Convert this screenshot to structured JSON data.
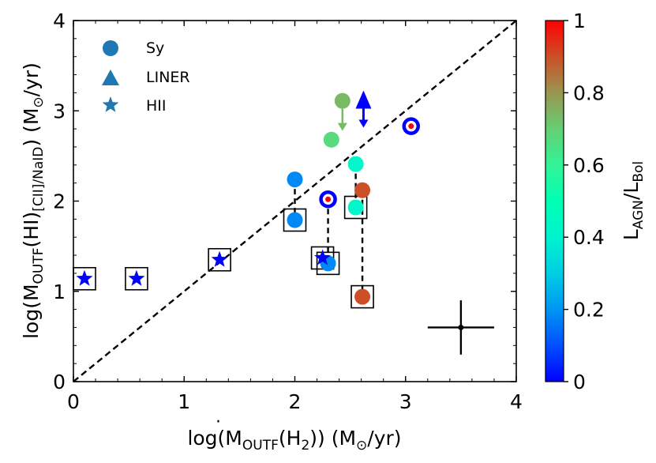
{
  "chart_data": {
    "type": "scatter",
    "xlim": [
      0,
      4
    ],
    "ylim": [
      0,
      4
    ],
    "xticks": [
      "0",
      "1",
      "2",
      "3",
      "4"
    ],
    "yticks": [
      "0",
      "1",
      "2",
      "3",
      "4"
    ],
    "x_axis_label": {
      "main": "log(M",
      "sub": "OUTF",
      "tail": "(H",
      "sub2": "2",
      "tail2": ")) (M",
      "sun": "⊙",
      "unit": "/yr)"
    },
    "y_axis_label": {
      "main": "log(M",
      "sub": "OUTF",
      "mid": "(HI)",
      "sub2": "[CII]/NaID",
      "tail": ") (M",
      "sun": "⊙",
      "unit": "/yr)"
    },
    "colorbar": {
      "range": [
        0,
        1
      ],
      "ticks": [
        "0",
        "0.2",
        "0.4",
        "0.6",
        "0.8",
        "1"
      ],
      "label_main": "L",
      "label_sub1": "AGN",
      "label_mid": "/L",
      "label_sub2": "Bol"
    },
    "legend": {
      "placement": "top-left",
      "entries": [
        {
          "marker": "circle",
          "label": "Sy"
        },
        {
          "marker": "triangle",
          "label": "LINER"
        },
        {
          "marker": "star",
          "label": "HII"
        }
      ]
    },
    "reference_line": {
      "style": "dashed",
      "slope": 1,
      "intercept": 0
    },
    "points": [
      {
        "x": 2.0,
        "y": 2.24,
        "c": 0.18,
        "marker": "circle"
      },
      {
        "x": 2.0,
        "y": 1.79,
        "c": 0.18,
        "marker": "circle",
        "boxed": true
      },
      {
        "x": 2.43,
        "y": 3.11,
        "c": 0.74,
        "marker": "circle",
        "arrow": "down"
      },
      {
        "x": 2.33,
        "y": 2.68,
        "c": 0.67,
        "marker": "circle"
      },
      {
        "x": 2.55,
        "y": 2.41,
        "c": 0.42,
        "marker": "circle"
      },
      {
        "x": 2.55,
        "y": 1.93,
        "c": 0.42,
        "marker": "circle",
        "boxed": true
      },
      {
        "x": 2.61,
        "y": 2.12,
        "c": 0.9,
        "marker": "circle"
      },
      {
        "x": 2.61,
        "y": 0.94,
        "c": 0.9,
        "marker": "circle",
        "boxed": true
      },
      {
        "x": 2.3,
        "y": 2.02,
        "c": 0.0,
        "marker": "ring"
      },
      {
        "x": 2.3,
        "y": 1.31,
        "c": 0.18,
        "marker": "circle",
        "boxed": true
      },
      {
        "x": 3.05,
        "y": 2.83,
        "c": 0.0,
        "marker": "ring"
      },
      {
        "x": 2.62,
        "y": 3.05,
        "c": 0.0,
        "marker": "doublearrow"
      },
      {
        "x": 0.1,
        "y": 1.14,
        "c": 0.0,
        "marker": "star",
        "boxed": true
      },
      {
        "x": 0.57,
        "y": 1.14,
        "c": 0.0,
        "marker": "star",
        "boxed": true
      },
      {
        "x": 1.32,
        "y": 1.35,
        "c": 0.0,
        "marker": "star",
        "boxed": true
      },
      {
        "x": 2.25,
        "y": 1.37,
        "c": 0.0,
        "marker": "star",
        "boxed": true
      }
    ],
    "connectors": [
      {
        "x": 2.0,
        "y1": 2.24,
        "y2": 1.79
      },
      {
        "x": 2.3,
        "y1": 2.02,
        "y2": 1.31
      },
      {
        "x": 2.55,
        "y1": 2.41,
        "y2": 1.93
      },
      {
        "x": 2.61,
        "y1": 2.12,
        "y2": 0.94
      }
    ],
    "error_bar": {
      "x": 3.5,
      "y": 0.6,
      "xerr": 0.3,
      "yerr": 0.3
    }
  }
}
